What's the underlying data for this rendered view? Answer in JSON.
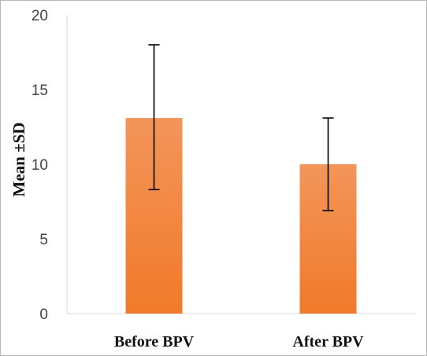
{
  "chart_data": {
    "type": "bar",
    "categories": [
      "Before BPV",
      "After BPV"
    ],
    "values": [
      13.1,
      10.0
    ],
    "error_low": [
      8.3,
      6.9
    ],
    "error_high": [
      18.0,
      13.1
    ],
    "title": "",
    "xlabel": "",
    "ylabel": "Mean ±SD",
    "ylim": [
      0,
      20
    ],
    "yticks": [
      "0",
      "5",
      "10",
      "15",
      "20"
    ],
    "grid": false,
    "legend": "none",
    "bar_color": "#f07a2a",
    "bar_color_light": "#f3955a",
    "error_bar_color": "#000000",
    "axis_color": "#d9d9d9"
  }
}
